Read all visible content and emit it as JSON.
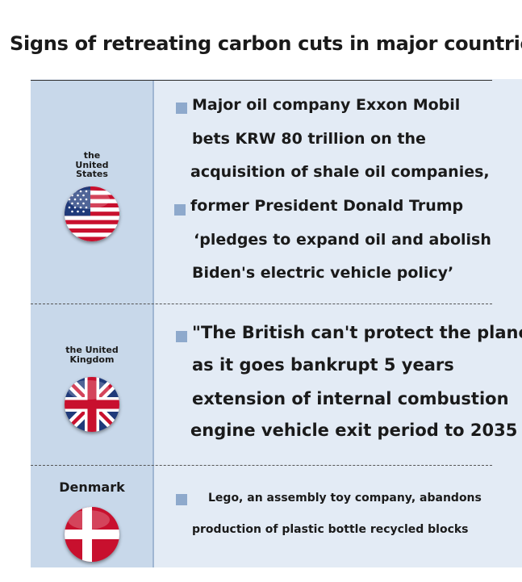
{
  "title": "Signs of retreating carbon cuts in major countries",
  "sections": [
    {
      "country": "the\nUnited\nStates",
      "flag": "us-flag-icon",
      "lines": [
        "Major oil company Exxon Mobil",
        "bets KRW 80 trillion on the",
        "acquisition of shale oil companies,",
        "former President Donald Trump",
        "‘pledges to expand oil and abolish",
        "Biden's electric vehicle policy’"
      ]
    },
    {
      "country": "the United\nKingdom",
      "flag": "uk-flag-icon",
      "lines": [
        "\"The British can't protect the planet",
        "as it goes bankrupt 5 years",
        "extension of internal combustion",
        "engine vehicle exit period to 2035"
      ]
    },
    {
      "country": "Denmark",
      "flag": "denmark-flag-icon",
      "lines": [
        "Lego, an assembly toy company, abandons",
        "production of plastic bottle recycled blocks"
      ]
    }
  ],
  "colors": {
    "panel": "#e3ebf5",
    "sidebar": "#c8d8ea",
    "bullet": "#8ea9cc"
  }
}
